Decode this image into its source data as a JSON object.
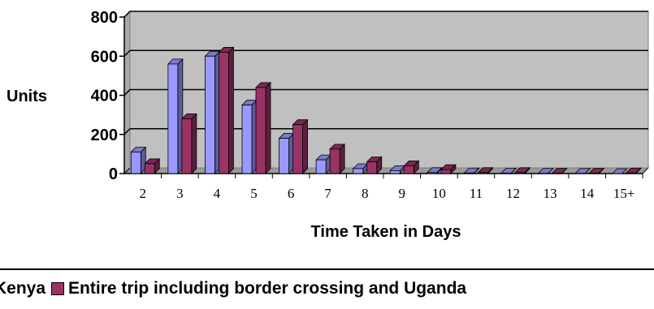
{
  "chart_data": {
    "type": "bar",
    "xlabel": "Time Taken in Days",
    "ylabel": "Units",
    "ylim": [
      0,
      800
    ],
    "yticks": [
      0,
      200,
      400,
      600,
      800
    ],
    "grid": true,
    "legend_position": "bottom",
    "categories": [
      "2",
      "3",
      "4",
      "5",
      "6",
      "7",
      "8",
      "9",
      "10",
      "11",
      "12",
      "13",
      "14",
      "15+"
    ],
    "series": [
      {
        "name": "Kenya",
        "color": "#9999ff",
        "values": [
          110,
          560,
          600,
          350,
          180,
          70,
          25,
          15,
          5,
          3,
          2,
          1,
          1,
          0
        ]
      },
      {
        "name": "Entire trip including border crossing and Uganda",
        "color": "#993366",
        "values": [
          50,
          280,
          620,
          440,
          250,
          125,
          60,
          40,
          20,
          5,
          5,
          2,
          2,
          3
        ]
      }
    ],
    "plot_background": "#c0c0c0"
  }
}
